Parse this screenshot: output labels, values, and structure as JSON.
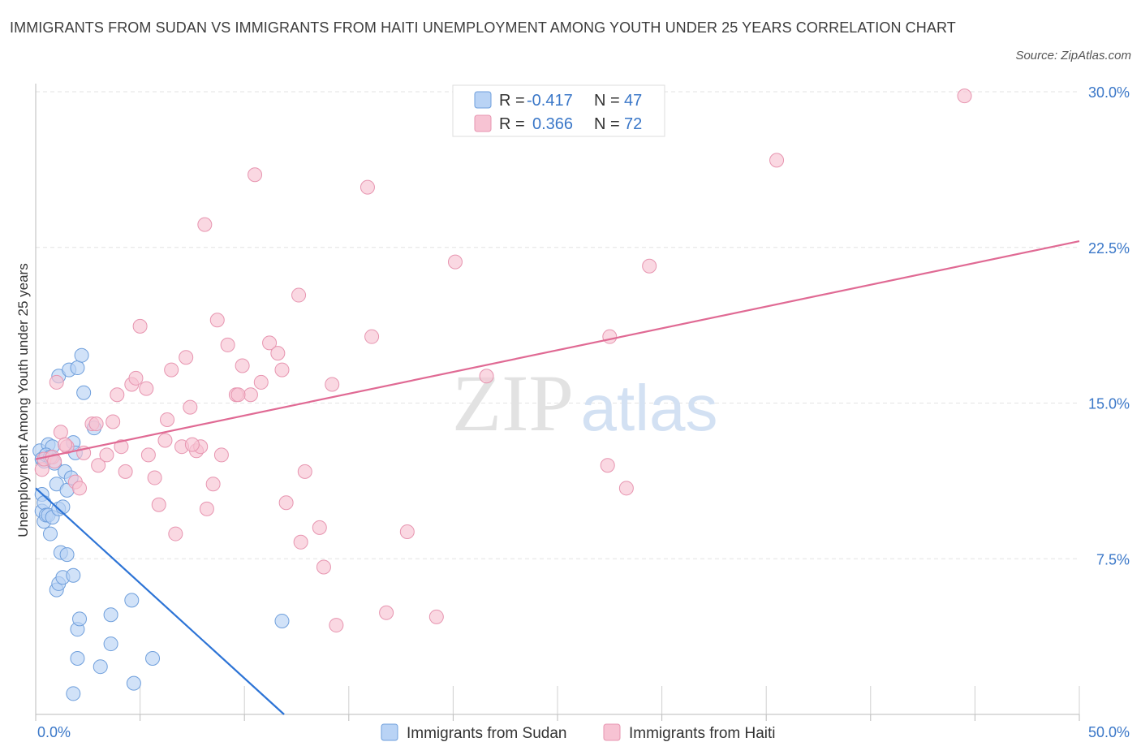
{
  "title": "IMMIGRANTS FROM SUDAN VS IMMIGRANTS FROM HAITI UNEMPLOYMENT AMONG YOUTH UNDER 25 YEARS CORRELATION CHART",
  "source": "Source: ZipAtlas.com",
  "watermark": {
    "zip": "ZIP",
    "atlas": "atlas"
  },
  "legend": {
    "sudan": {
      "r_label": "R =",
      "r_value": "-0.417",
      "n_label": "N =",
      "n_value": "47"
    },
    "haiti": {
      "r_label": "R =",
      "r_value": "0.366",
      "n_label": "N =",
      "n_value": "72"
    }
  },
  "colors": {
    "sudan_fill": "#b9d3f5",
    "sudan_stroke": "#6f9fdc",
    "sudan_line": "#2d74d6",
    "haiti_fill": "#f7c3d3",
    "haiti_stroke": "#e795b0",
    "haiti_line": "#e06a94",
    "tick": "#3a77c8",
    "grid": "#e3e3e3"
  },
  "chart_data": {
    "type": "scatter",
    "xlabel": "",
    "ylabel": "Unemployment Among Youth under 25 years",
    "xlim": [
      0,
      50
    ],
    "ylim": [
      0,
      30
    ],
    "x_tick_labels": [
      "0.0%",
      "50.0%"
    ],
    "y_ticks": [
      7.5,
      15.0,
      22.5,
      30.0
    ],
    "y_tick_labels": [
      "7.5%",
      "15.0%",
      "22.5%",
      "30.0%"
    ],
    "grid": "horizontal dashed",
    "legend_placement": "top-center / bottom",
    "series": [
      {
        "name": "Immigrants from Sudan",
        "points": [
          [
            0.2,
            12.7
          ],
          [
            0.3,
            10.6
          ],
          [
            0.3,
            9.8
          ],
          [
            0.4,
            10.2
          ],
          [
            0.3,
            12.3
          ],
          [
            0.4,
            9.3
          ],
          [
            0.5,
            9.6
          ],
          [
            0.6,
            13.0
          ],
          [
            0.6,
            9.6
          ],
          [
            0.7,
            8.7
          ],
          [
            0.8,
            12.9
          ],
          [
            0.8,
            9.5
          ],
          [
            0.9,
            12.1
          ],
          [
            1.0,
            11.1
          ],
          [
            1.0,
            6.0
          ],
          [
            1.1,
            9.9
          ],
          [
            1.1,
            6.3
          ],
          [
            1.1,
            16.3
          ],
          [
            1.2,
            7.8
          ],
          [
            1.3,
            10.0
          ],
          [
            1.3,
            6.6
          ],
          [
            1.4,
            11.7
          ],
          [
            1.5,
            10.8
          ],
          [
            1.5,
            7.7
          ],
          [
            1.6,
            16.6
          ],
          [
            1.7,
            11.4
          ],
          [
            1.8,
            6.7
          ],
          [
            1.8,
            13.1
          ],
          [
            1.8,
            1.0
          ],
          [
            1.9,
            12.6
          ],
          [
            2.0,
            16.7
          ],
          [
            2.0,
            2.7
          ],
          [
            2.0,
            4.1
          ],
          [
            2.1,
            4.6
          ],
          [
            2.2,
            17.3
          ],
          [
            2.3,
            15.5
          ],
          [
            2.8,
            13.8
          ],
          [
            3.1,
            2.3
          ],
          [
            3.6,
            3.4
          ],
          [
            3.6,
            4.8
          ],
          [
            4.6,
            5.5
          ],
          [
            4.7,
            1.5
          ],
          [
            5.6,
            2.7
          ],
          [
            11.8,
            4.5
          ],
          [
            0.4,
            12.2
          ],
          [
            0.5,
            12.5
          ],
          [
            0.7,
            12.4
          ]
        ]
      },
      {
        "name": "Immigrants from Haiti",
        "points": [
          [
            0.3,
            11.8
          ],
          [
            0.4,
            12.3
          ],
          [
            0.8,
            12.4
          ],
          [
            1.0,
            16.0
          ],
          [
            1.2,
            13.6
          ],
          [
            1.5,
            12.9
          ],
          [
            1.9,
            11.2
          ],
          [
            2.1,
            10.9
          ],
          [
            2.3,
            12.6
          ],
          [
            2.7,
            14.0
          ],
          [
            2.9,
            14.0
          ],
          [
            3.0,
            12.0
          ],
          [
            3.4,
            12.5
          ],
          [
            3.7,
            14.1
          ],
          [
            3.9,
            15.4
          ],
          [
            4.1,
            12.9
          ],
          [
            4.3,
            11.7
          ],
          [
            4.6,
            15.9
          ],
          [
            4.8,
            16.2
          ],
          [
            5.0,
            18.7
          ],
          [
            5.3,
            15.7
          ],
          [
            5.4,
            12.5
          ],
          [
            5.7,
            11.4
          ],
          [
            5.9,
            10.1
          ],
          [
            6.2,
            13.2
          ],
          [
            6.3,
            14.2
          ],
          [
            6.5,
            16.6
          ],
          [
            6.7,
            8.7
          ],
          [
            7.0,
            12.9
          ],
          [
            7.2,
            17.2
          ],
          [
            7.4,
            14.8
          ],
          [
            7.7,
            12.7
          ],
          [
            7.9,
            12.9
          ],
          [
            8.1,
            23.6
          ],
          [
            8.2,
            9.9
          ],
          [
            8.5,
            11.1
          ],
          [
            8.7,
            19.0
          ],
          [
            8.9,
            12.5
          ],
          [
            9.2,
            17.8
          ],
          [
            9.6,
            15.4
          ],
          [
            9.9,
            16.8
          ],
          [
            10.5,
            26.0
          ],
          [
            10.8,
            16.0
          ],
          [
            10.3,
            15.4
          ],
          [
            11.2,
            17.9
          ],
          [
            11.6,
            17.4
          ],
          [
            11.8,
            16.6
          ],
          [
            12.0,
            10.2
          ],
          [
            12.6,
            20.2
          ],
          [
            12.7,
            8.3
          ],
          [
            12.9,
            11.7
          ],
          [
            13.6,
            9.0
          ],
          [
            13.8,
            7.1
          ],
          [
            14.2,
            15.9
          ],
          [
            14.4,
            4.3
          ],
          [
            15.9,
            25.4
          ],
          [
            16.1,
            18.2
          ],
          [
            16.8,
            4.9
          ],
          [
            17.8,
            8.8
          ],
          [
            19.2,
            4.7
          ],
          [
            20.1,
            21.8
          ],
          [
            21.6,
            16.3
          ],
          [
            27.4,
            12.0
          ],
          [
            27.5,
            18.2
          ],
          [
            28.3,
            10.9
          ],
          [
            29.4,
            21.6
          ],
          [
            35.5,
            26.7
          ],
          [
            44.5,
            29.8
          ],
          [
            9.7,
            15.4
          ],
          [
            7.5,
            13.0
          ],
          [
            1.4,
            13.0
          ],
          [
            0.9,
            12.2
          ]
        ]
      }
    ],
    "trendlines": [
      {
        "series": "Immigrants from Sudan",
        "from": [
          0.0,
          10.9
        ],
        "to": [
          11.9,
          0.0
        ]
      },
      {
        "series": "Immigrants from Haiti",
        "from": [
          0.0,
          12.3
        ],
        "to": [
          50.0,
          22.8
        ]
      }
    ]
  }
}
